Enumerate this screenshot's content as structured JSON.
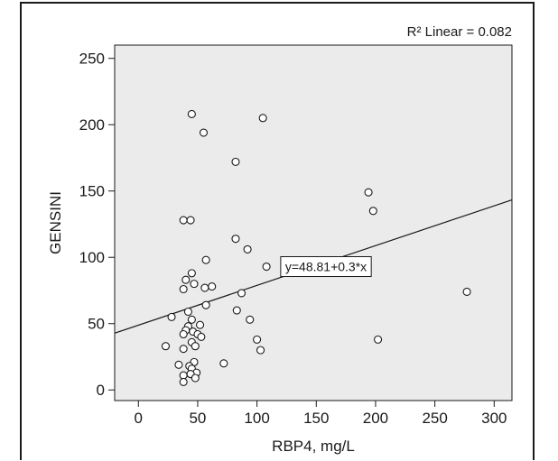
{
  "chart_data": {
    "type": "scatter",
    "xlabel": "RBP4, mg/L",
    "ylabel": "GENSINI",
    "xlim": [
      -20,
      315
    ],
    "ylim": [
      -8,
      260
    ],
    "xticks": [
      0,
      50,
      100,
      150,
      200,
      250,
      300
    ],
    "yticks": [
      0,
      50,
      100,
      150,
      200,
      250
    ],
    "grid": false,
    "background_color": "#ebebeb",
    "marker_color": "#ffffff",
    "marker_edge_color": "#1a1a1a",
    "fit_line": {
      "label": "y=48.81+0.3*x",
      "intercept": 48.81,
      "slope": 0.3,
      "x_range": [
        -20,
        315
      ],
      "label_anchor": [
        120,
        93
      ]
    },
    "r2_label": "R² Linear = 0.082",
    "points": [
      [
        45,
        208
      ],
      [
        105,
        205
      ],
      [
        55,
        194
      ],
      [
        82,
        172
      ],
      [
        194,
        149
      ],
      [
        198,
        135
      ],
      [
        38,
        128
      ],
      [
        44,
        128
      ],
      [
        82,
        114
      ],
      [
        92,
        106
      ],
      [
        57,
        98
      ],
      [
        108,
        93
      ],
      [
        45,
        88
      ],
      [
        40,
        83
      ],
      [
        47,
        80
      ],
      [
        62,
        78
      ],
      [
        56,
        77
      ],
      [
        38,
        76
      ],
      [
        87,
        73
      ],
      [
        277,
        74
      ],
      [
        57,
        64
      ],
      [
        42,
        59
      ],
      [
        83,
        60
      ],
      [
        28,
        55
      ],
      [
        45,
        53
      ],
      [
        94,
        53
      ],
      [
        52,
        49
      ],
      [
        42,
        48
      ],
      [
        40,
        45
      ],
      [
        46,
        44
      ],
      [
        50,
        42
      ],
      [
        38,
        42
      ],
      [
        53,
        40
      ],
      [
        100,
        38
      ],
      [
        202,
        38
      ],
      [
        45,
        36
      ],
      [
        48,
        33
      ],
      [
        38,
        31
      ],
      [
        103,
        30
      ],
      [
        23,
        33
      ],
      [
        47,
        21
      ],
      [
        34,
        19
      ],
      [
        72,
        20
      ],
      [
        43,
        18
      ],
      [
        45,
        16
      ],
      [
        49,
        13
      ],
      [
        38,
        11
      ],
      [
        44,
        12
      ],
      [
        48,
        9
      ],
      [
        38,
        6
      ]
    ]
  }
}
